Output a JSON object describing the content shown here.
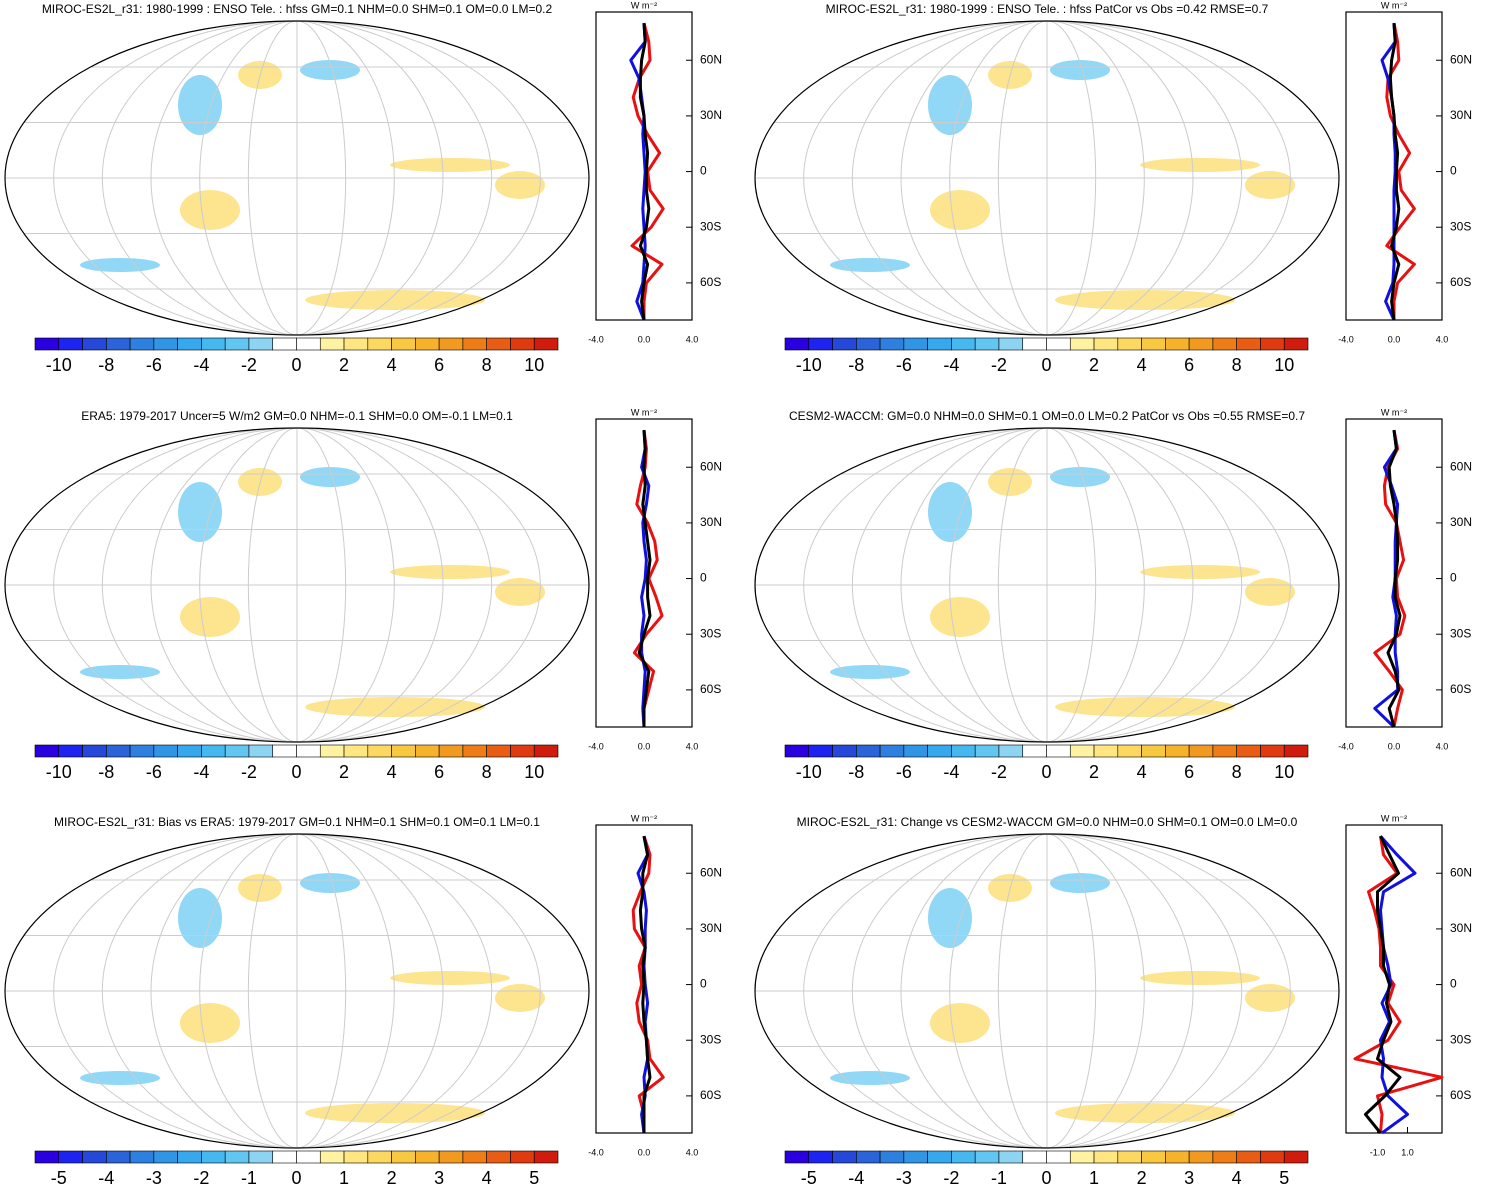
{
  "chart_data": [
    {
      "type": "line",
      "title": "MIROC-ES2L_r31: 1980-1999 : ENSO Tele. : hfss GM=0.1 NHM=0.0 SHM=0.1 OM=0.0 LM=0.2",
      "unit_label": "W m⁻²",
      "lat": [
        80,
        70,
        60,
        50,
        40,
        30,
        20,
        10,
        0,
        -10,
        -20,
        -30,
        -40,
        -50,
        -60,
        -70,
        -80
      ],
      "xlim": [
        -4,
        4
      ],
      "xticks": [
        {
          "value": -4,
          "label": "-4.0"
        },
        {
          "value": 0,
          "label": "0.0"
        },
        {
          "value": 4,
          "label": "4.0"
        }
      ],
      "ylim": [
        -80,
        86
      ],
      "yticks": [
        {
          "value": 60,
          "label": "60N"
        },
        {
          "value": 30,
          "label": "30N"
        },
        0,
        {
          "value": -30,
          "label": "30S"
        },
        {
          "value": -60,
          "label": "60S"
        }
      ],
      "series": [
        {
          "color": "#e81010",
          "values": [
            0,
            0.4,
            0.5,
            -0.4,
            -0.9,
            -0.5,
            0.3,
            1.3,
            0.3,
            0.5,
            1.6,
            0.6,
            -1.0,
            1.5,
            0.2,
            0,
            0
          ]
        },
        {
          "color": "#1010e0",
          "values": [
            0,
            0.1,
            -1.1,
            -0.4,
            -0.2,
            0,
            -0.1,
            0,
            0.1,
            0,
            -0.1,
            0,
            0.1,
            0,
            -0.1,
            -0.6,
            0
          ]
        },
        {
          "color": "#000000",
          "values": [
            0,
            0.1,
            -0.2,
            -0.3,
            -0.3,
            0,
            0.1,
            0.3,
            0.2,
            0.2,
            0.4,
            0.2,
            -0.3,
            0.3,
            0,
            -0.2,
            0
          ]
        }
      ],
      "colorbar": {
        "lim": [
          -11,
          11
        ],
        "ticks": [
          -10,
          -8,
          -6,
          -4,
          -2,
          0,
          2,
          4,
          6,
          8,
          10
        ],
        "colors": [
          "#2b00e0",
          "#1e24f0",
          "#2548d8",
          "#2b64d8",
          "#2d80e0",
          "#3195e6",
          "#36a8ee",
          "#45b8f0",
          "#62c6f2",
          "#8dd4f2",
          "#ffffff",
          "#ffffff",
          "#fff2a0",
          "#ffe680",
          "#fcd860",
          "#f8c840",
          "#f5b22a",
          "#f29a20",
          "#ee7d18",
          "#e85c14",
          "#e03a10",
          "#d01c0c"
        ]
      }
    },
    {
      "type": "line",
      "title": "MIROC-ES2L_r31: 1980-1999 : ENSO Tele. : hfss PatCor vs Obs =0.42 RMSE=0.7",
      "unit_label": "W m⁻²",
      "lat": [
        80,
        70,
        60,
        50,
        40,
        30,
        20,
        10,
        0,
        -10,
        -20,
        -30,
        -40,
        -50,
        -60,
        -70,
        -80
      ],
      "xlim": [
        -4,
        4
      ],
      "xticks": [
        {
          "value": -4,
          "label": "-4.0"
        },
        {
          "value": 0,
          "label": "0.0"
        },
        {
          "value": 4,
          "label": "4.0"
        }
      ],
      "ylim": [
        -80,
        86
      ],
      "yticks": [
        {
          "value": 60,
          "label": "60N"
        },
        {
          "value": 30,
          "label": "30N"
        },
        0,
        {
          "value": -30,
          "label": "30S"
        },
        {
          "value": -60,
          "label": "60S"
        }
      ],
      "series": [
        {
          "color": "#e81010",
          "values": [
            0,
            0.3,
            0.4,
            -0.5,
            -0.6,
            -0.3,
            0.4,
            1.3,
            0.4,
            0.6,
            1.7,
            0.5,
            -0.6,
            1.7,
            0.3,
            0,
            0
          ]
        },
        {
          "color": "#1010e0",
          "values": [
            0,
            0.1,
            -1.0,
            -0.5,
            -0.2,
            0,
            0,
            0.1,
            0.1,
            0,
            0,
            0,
            0,
            0,
            -0.1,
            -0.7,
            0
          ]
        },
        {
          "color": "#000000",
          "values": [
            0,
            0.1,
            -0.2,
            -0.3,
            -0.2,
            0,
            0.1,
            0.3,
            0.2,
            0.2,
            0.4,
            0.2,
            -0.2,
            0.4,
            0,
            -0.2,
            0
          ]
        }
      ],
      "colorbar": {
        "lim": [
          -11,
          11
        ],
        "ticks": [
          -10,
          -8,
          -6,
          -4,
          -2,
          0,
          2,
          4,
          6,
          8,
          10
        ],
        "colors": [
          "#2b00e0",
          "#1e24f0",
          "#2548d8",
          "#2b64d8",
          "#2d80e0",
          "#3195e6",
          "#36a8ee",
          "#45b8f0",
          "#62c6f2",
          "#8dd4f2",
          "#ffffff",
          "#ffffff",
          "#fff2a0",
          "#ffe680",
          "#fcd860",
          "#f8c840",
          "#f5b22a",
          "#f29a20",
          "#ee7d18",
          "#e85c14",
          "#e03a10",
          "#d01c0c"
        ]
      }
    },
    {
      "type": "line",
      "title": "ERA5: 1979-2017 Uncer=5 W/m2 GM=0.0 NHM=-0.1 SHM=0.0 OM=-0.1 LM=0.1",
      "unit_label": "W m⁻²",
      "lat": [
        80,
        70,
        60,
        50,
        40,
        30,
        20,
        10,
        0,
        -10,
        -20,
        -30,
        -40,
        -50,
        -60,
        -70,
        -80
      ],
      "xlim": [
        -4,
        4
      ],
      "xticks": [
        {
          "value": -4,
          "label": "-4.0"
        },
        {
          "value": 0,
          "label": "0.0"
        },
        {
          "value": 4,
          "label": "4.0"
        }
      ],
      "ylim": [
        -80,
        86
      ],
      "yticks": [
        {
          "value": 60,
          "label": "60N"
        },
        {
          "value": 30,
          "label": "30N"
        },
        0,
        {
          "value": -30,
          "label": "30S"
        },
        {
          "value": -60,
          "label": "60S"
        }
      ],
      "series": [
        {
          "color": "#e81010",
          "values": [
            0,
            0.2,
            0.1,
            -0.3,
            -0.6,
            0.3,
            0.9,
            1.1,
            0.4,
            1.0,
            1.5,
            0.2,
            -0.8,
            0.8,
            0.4,
            0,
            0
          ]
        },
        {
          "color": "#1010e0",
          "values": [
            0,
            0.1,
            -0.2,
            0.4,
            0.2,
            -0.1,
            0,
            0.2,
            0.1,
            -0.2,
            0,
            -0.2,
            -0.2,
            0.1,
            0,
            -0.1,
            0
          ]
        },
        {
          "color": "#000000",
          "values": [
            0,
            0.1,
            0,
            0.1,
            -0.1,
            0.1,
            0.3,
            0.5,
            0.3,
            0.3,
            0.5,
            0,
            -0.4,
            0.4,
            0.2,
            0,
            0
          ]
        }
      ],
      "colorbar": {
        "lim": [
          -11,
          11
        ],
        "ticks": [
          -10,
          -8,
          -6,
          -4,
          -2,
          0,
          2,
          4,
          6,
          8,
          10
        ],
        "colors": [
          "#2b00e0",
          "#1e24f0",
          "#2548d8",
          "#2b64d8",
          "#2d80e0",
          "#3195e6",
          "#36a8ee",
          "#45b8f0",
          "#62c6f2",
          "#8dd4f2",
          "#ffffff",
          "#ffffff",
          "#fff2a0",
          "#ffe680",
          "#fcd860",
          "#f8c840",
          "#f5b22a",
          "#f29a20",
          "#ee7d18",
          "#e85c14",
          "#e03a10",
          "#d01c0c"
        ]
      }
    },
    {
      "type": "line",
      "title": "CESM2-WACCM: GM=0.0 NHM=0.0 SHM=0.1 OM=0.0 LM=0.2 PatCor vs Obs =0.55 RMSE=0.7",
      "unit_label": "W m⁻²",
      "lat": [
        80,
        70,
        60,
        50,
        40,
        30,
        20,
        10,
        0,
        -10,
        -20,
        -30,
        -40,
        -50,
        -60,
        -70,
        -80
      ],
      "xlim": [
        -4,
        4
      ],
      "xticks": [
        {
          "value": -4,
          "label": "-4.0"
        },
        {
          "value": 0,
          "label": "0.0"
        },
        {
          "value": 4,
          "label": "4.0"
        }
      ],
      "ylim": [
        -80,
        86
      ],
      "yticks": [
        {
          "value": 60,
          "label": "60N"
        },
        {
          "value": 30,
          "label": "30N"
        },
        0,
        {
          "value": -30,
          "label": "30S"
        },
        {
          "value": -60,
          "label": "60S"
        }
      ],
      "series": [
        {
          "color": "#e81010",
          "values": [
            0,
            0.3,
            -0.5,
            -0.8,
            -0.7,
            0.2,
            0.5,
            0.8,
            0.2,
            0.3,
            0.9,
            0.5,
            -1.6,
            -0.4,
            0.7,
            0.3,
            0
          ]
        },
        {
          "color": "#1010e0",
          "values": [
            0,
            0.2,
            -0.8,
            -0.2,
            0.3,
            0.2,
            0.1,
            0.1,
            0.1,
            -0.1,
            0.2,
            0.1,
            0.1,
            0.3,
            0.3,
            -1.6,
            0
          ]
        },
        {
          "color": "#000000",
          "values": [
            0,
            0.2,
            -0.4,
            -0.3,
            0,
            0.2,
            0.3,
            0.3,
            0.1,
            0.1,
            0.5,
            0.2,
            -0.5,
            0.1,
            0.4,
            -0.4,
            0
          ]
        }
      ],
      "colorbar": {
        "lim": [
          -11,
          11
        ],
        "ticks": [
          -10,
          -8,
          -6,
          -4,
          -2,
          0,
          2,
          4,
          6,
          8,
          10
        ],
        "colors": [
          "#2b00e0",
          "#1e24f0",
          "#2548d8",
          "#2b64d8",
          "#2d80e0",
          "#3195e6",
          "#36a8ee",
          "#45b8f0",
          "#62c6f2",
          "#8dd4f2",
          "#ffffff",
          "#ffffff",
          "#fff2a0",
          "#ffe680",
          "#fcd860",
          "#f8c840",
          "#f5b22a",
          "#f29a20",
          "#ee7d18",
          "#e85c14",
          "#e03a10",
          "#d01c0c"
        ]
      }
    },
    {
      "type": "line",
      "title": "MIROC-ES2L_r31: Bias vs ERA5: 1979-2017 GM=0.1 NHM=0.1 SHM=0.1 OM=0.1 LM=0.1",
      "unit_label": "W m⁻²",
      "lat": [
        80,
        70,
        60,
        50,
        40,
        30,
        20,
        10,
        0,
        -10,
        -20,
        -30,
        -40,
        -50,
        -60,
        -70,
        -80
      ],
      "xlim": [
        -4,
        4
      ],
      "xticks": [
        {
          "value": -4,
          "label": "-4.0"
        },
        {
          "value": 0,
          "label": "0.0"
        },
        {
          "value": 4,
          "label": "4.0"
        }
      ],
      "ylim": [
        -80,
        86
      ],
      "yticks": [
        {
          "value": 60,
          "label": "60N"
        },
        {
          "value": 30,
          "label": "30N"
        },
        0,
        {
          "value": -30,
          "label": "30S"
        },
        {
          "value": -60,
          "label": "60S"
        }
      ],
      "series": [
        {
          "color": "#e81010",
          "values": [
            0,
            0.5,
            0.4,
            -0.3,
            -0.9,
            -0.8,
            0.1,
            -0.4,
            -0.2,
            -0.6,
            -0.4,
            0.3,
            0.5,
            1.6,
            -0.4,
            0,
            0
          ]
        },
        {
          "color": "#1010e0",
          "values": [
            0,
            0.3,
            -0.5,
            0,
            0.2,
            0.1,
            0.1,
            0,
            0.1,
            0.3,
            0.1,
            0.2,
            0.3,
            0,
            0.1,
            -0.2,
            0
          ]
        },
        {
          "color": "#000000",
          "values": [
            0,
            0.3,
            -0.1,
            -0.1,
            -0.3,
            -0.2,
            0.1,
            -0.1,
            0,
            -0.1,
            0,
            0.2,
            0.3,
            0.5,
            0,
            0,
            0
          ]
        }
      ],
      "colorbar": {
        "lim": [
          -5.5,
          5.5
        ],
        "ticks": [
          -5,
          -4,
          -3,
          -2,
          -1,
          0,
          1,
          2,
          3,
          4,
          5
        ],
        "colors": [
          "#2b00e0",
          "#1e24f0",
          "#2548d8",
          "#2b64d8",
          "#2d80e0",
          "#3195e6",
          "#36a8ee",
          "#45b8f0",
          "#62c6f2",
          "#8dd4f2",
          "#ffffff",
          "#ffffff",
          "#fff2a0",
          "#ffe680",
          "#fcd860",
          "#f8c840",
          "#f5b22a",
          "#f29a20",
          "#ee7d18",
          "#e85c14",
          "#e03a10",
          "#d01c0c"
        ]
      }
    },
    {
      "type": "line",
      "title": "MIROC-ES2L_r31: Change vs CESM2-WACCM GM=0.0 NHM=0.0 SHM=0.1 OM=0.0 LM=0.0",
      "unit_label": "W m⁻²",
      "lat": [
        80,
        70,
        60,
        50,
        40,
        30,
        20,
        10,
        0,
        -10,
        -20,
        -30,
        -40,
        -50,
        -60,
        -70,
        -80
      ],
      "xlim": [
        -3.1,
        3.3
      ],
      "xticks": [
        {
          "value": -1,
          "label": "-1.0"
        },
        {
          "value": 1,
          "label": "1.0"
        }
      ],
      "ylim": [
        -80,
        86
      ],
      "yticks": [
        {
          "value": 60,
          "label": "60N"
        },
        {
          "value": 30,
          "label": "30N"
        },
        0,
        {
          "value": -30,
          "label": "30S"
        },
        {
          "value": -60,
          "label": "60S"
        }
      ],
      "series": [
        {
          "color": "#e81010",
          "values": [
            -0.8,
            -0.6,
            0.3,
            -1.6,
            -1.2,
            -0.9,
            -0.8,
            -0.8,
            0.1,
            -0.3,
            0.5,
            -0.3,
            -2.5,
            3.3,
            -1.0,
            -0.7,
            -0.8
          ]
        },
        {
          "color": "#1010e0",
          "values": [
            -0.8,
            0.3,
            1.5,
            -0.6,
            -0.8,
            -0.7,
            -0.6,
            -0.3,
            -0.1,
            -0.7,
            -0.2,
            -0.8,
            -0.6,
            -0.7,
            -0.3,
            1.0,
            -0.7
          ]
        },
        {
          "color": "#000000",
          "values": [
            -0.8,
            -0.2,
            0.4,
            -1.0,
            -1.0,
            -0.8,
            -0.6,
            -0.6,
            -0.2,
            -0.4,
            -0.1,
            -0.6,
            -1.0,
            0.5,
            -0.5,
            -1.8,
            -0.8
          ]
        }
      ],
      "colorbar": {
        "lim": [
          -5.5,
          5.5
        ],
        "ticks": [
          -5,
          -4,
          -3,
          -2,
          -1,
          0,
          1,
          2,
          3,
          4,
          5
        ],
        "colors": [
          "#2b00e0",
          "#1e24f0",
          "#2548d8",
          "#2b64d8",
          "#2d80e0",
          "#3195e6",
          "#36a8ee",
          "#45b8f0",
          "#62c6f2",
          "#8dd4f2",
          "#ffffff",
          "#ffffff",
          "#fff2a0",
          "#ffe680",
          "#fcd860",
          "#f8c840",
          "#f5b22a",
          "#f29a20",
          "#ee7d18",
          "#e85c14",
          "#e03a10",
          "#d01c0c"
        ]
      }
    }
  ]
}
